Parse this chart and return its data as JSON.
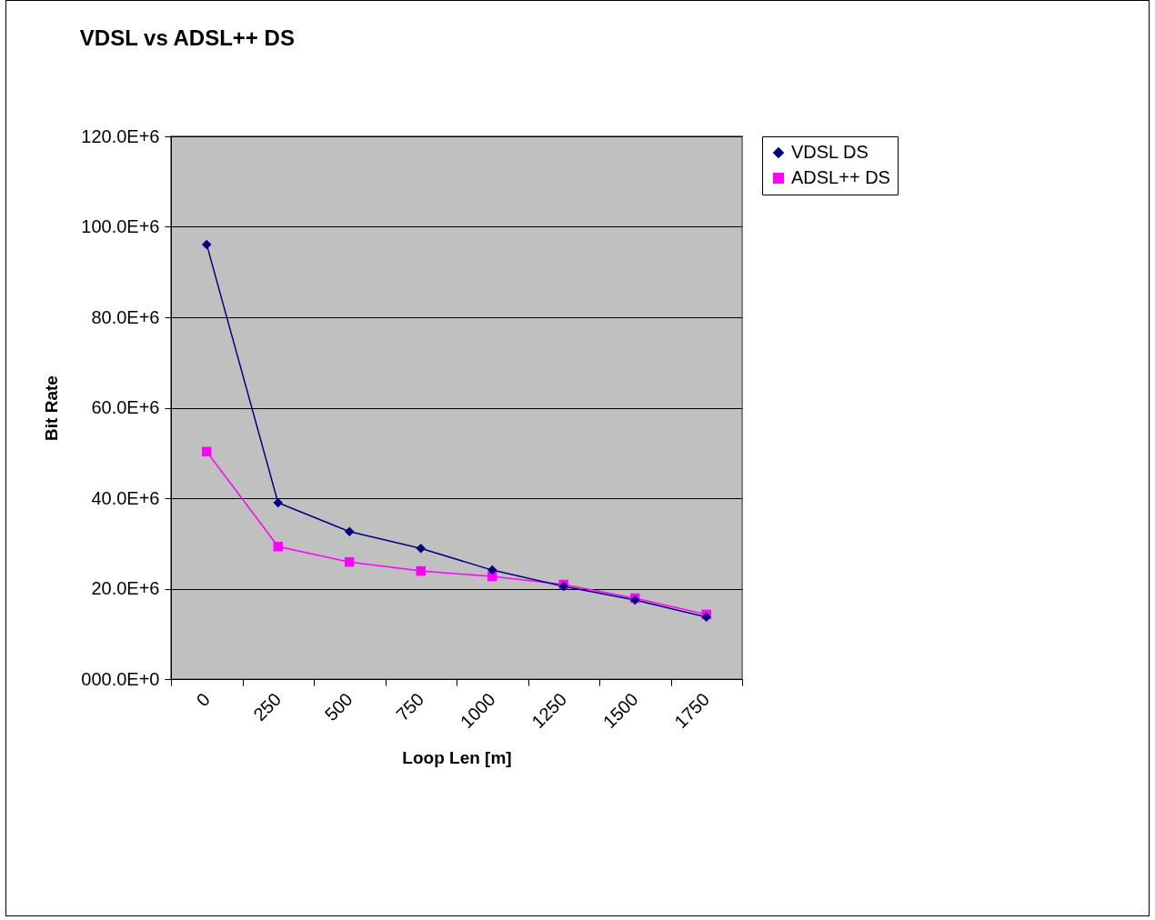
{
  "chart_data": {
    "type": "line",
    "title": "VDSL vs ADSL++ DS",
    "xlabel": "Loop Len [m]",
    "ylabel": "Bit Rate",
    "categories": [
      "0",
      "250",
      "500",
      "750",
      "1000",
      "1250",
      "1500",
      "1750"
    ],
    "series": [
      {
        "name": "VDSL DS",
        "color": "#000080",
        "marker": "diamond",
        "values": [
          96100000,
          39000000,
          32600000,
          28900000,
          24100000,
          20500000,
          17500000,
          13700000
        ]
      },
      {
        "name": "ADSL++ DS",
        "color": "#ff00ff",
        "marker": "square",
        "values": [
          50300000,
          29300000,
          25900000,
          23900000,
          22700000,
          20900000,
          17900000,
          14300000
        ]
      }
    ],
    "ylim": [
      0,
      120000000
    ],
    "yticks": [
      {
        "value": 0,
        "label": "000.0E+0"
      },
      {
        "value": 20000000,
        "label": "20.0E+6"
      },
      {
        "value": 40000000,
        "label": "40.0E+6"
      },
      {
        "value": 60000000,
        "label": "60.0E+6"
      },
      {
        "value": 80000000,
        "label": "80.0E+6"
      },
      {
        "value": 100000000,
        "label": "100.0E+6"
      },
      {
        "value": 120000000,
        "label": "120.0E+6"
      }
    ],
    "grid": "y",
    "legend": "right",
    "line_style": "solid"
  }
}
